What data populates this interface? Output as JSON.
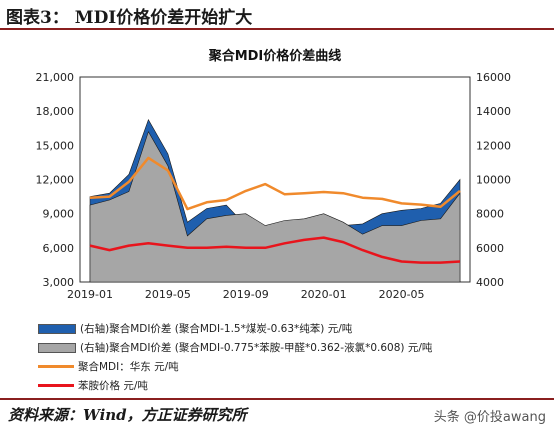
{
  "figure_title": "图表3：  MDI价格价差开始扩大",
  "source": "资料来源：Wind，方正证券研究所",
  "watermark": "头条 @价投awang",
  "colors": {
    "blue_spread": "#1f5fae",
    "gray_spread": "#a6a6a6",
    "orange_price": "#f08a2c",
    "red_price": "#e8141c",
    "rule": "#8a1f1f"
  },
  "chart_data": {
    "type": "area",
    "title": "聚合MDI价格价差曲线",
    "x_ticks": [
      "2019-01",
      "2019-05",
      "2019-09",
      "2020-01",
      "2020-05"
    ],
    "x": [
      "2019-01",
      "2019-02",
      "2019-03",
      "2019-04",
      "2019-05",
      "2019-06",
      "2019-07",
      "2019-08",
      "2019-09",
      "2019-10",
      "2019-11",
      "2019-12",
      "2020-01",
      "2020-02",
      "2020-03",
      "2020-04",
      "2020-05",
      "2020-06",
      "2020-07",
      "2020-08"
    ],
    "y_left": {
      "min": 3000,
      "max": 21000,
      "ticks": [
        "3,000",
        "6,000",
        "9,000",
        "12,000",
        "15,000",
        "18,000",
        "21,000"
      ]
    },
    "y_right": {
      "min": 4000,
      "max": 16000,
      "ticks": [
        "4000",
        "6000",
        "8000",
        "10000",
        "12000",
        "14000",
        "16000"
      ]
    },
    "series": [
      {
        "name": "(右轴)聚合MDI价差 (聚合MDI-1.5*煤炭-0.63*纯苯) 元/吨",
        "axis": "right",
        "style": "area",
        "values": [
          9000,
          9200,
          10300,
          13500,
          11500,
          7500,
          8300,
          8500,
          7300,
          5800,
          7100,
          7300,
          7400,
          7300,
          7400,
          8000,
          8200,
          8300,
          8600,
          10000
        ]
      },
      {
        "name": "(右轴)聚合MDI价差 (聚合MDI-0.775*苯胺-甲醛*0.362-液氯*0.608) 元/吨",
        "axis": "right",
        "style": "area",
        "values": [
          8500,
          8800,
          9300,
          12800,
          10800,
          6700,
          7700,
          7900,
          8000,
          7300,
          7600,
          7700,
          8000,
          7500,
          6800,
          7300,
          7300,
          7600,
          7700,
          9200
        ]
      },
      {
        "name": "聚合MDI：华东 元/吨",
        "axis": "left",
        "style": "line",
        "values": [
          10400,
          10500,
          11800,
          13900,
          12800,
          9400,
          10000,
          10200,
          11000,
          11600,
          10700,
          10800,
          10900,
          10800,
          10400,
          10300,
          9900,
          9800,
          9600,
          11000
        ]
      },
      {
        "name": "苯胺价格 元/吨",
        "axis": "left",
        "style": "line",
        "values": [
          6200,
          5800,
          6200,
          6400,
          6200,
          6000,
          6000,
          6100,
          6000,
          6000,
          6400,
          6700,
          6900,
          6500,
          5800,
          5200,
          4800,
          4700,
          4700,
          4800
        ]
      }
    ]
  }
}
